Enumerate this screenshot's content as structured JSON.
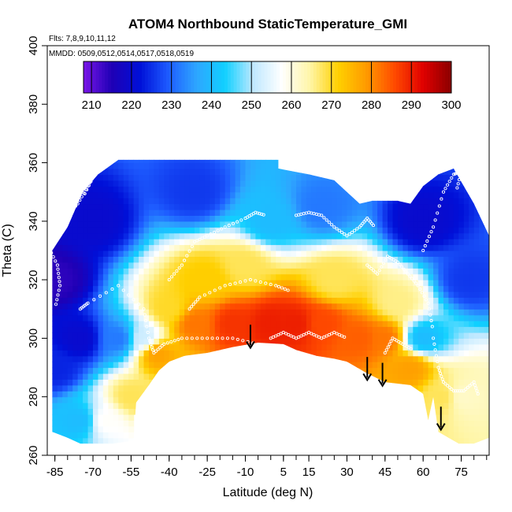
{
  "chart_data": {
    "type": "heatmap",
    "title": "ATOM4 Northbound StaticTemperature_GMI",
    "subtitle_flights": "Flts: 7,8,9,10,11,12",
    "subtitle_dates": "MMDD: 0509,0512,0514,0517,0518,0519",
    "xlabel": "Latitude (deg N)",
    "ylabel": "Theta (C)",
    "xlim": [
      -88,
      86
    ],
    "ylim": [
      260,
      400
    ],
    "x_ticks": [
      -85,
      -70,
      -55,
      -40,
      -25,
      -10,
      5,
      15,
      30,
      45,
      60,
      75
    ],
    "y_ticks": [
      260,
      280,
      300,
      320,
      340,
      360,
      380,
      400
    ],
    "colorbar": {
      "min": 208,
      "max": 300,
      "ticks": [
        210,
        220,
        230,
        240,
        250,
        260,
        270,
        280,
        290,
        300
      ],
      "colors": [
        "#7a16e8",
        "#1f00b5",
        "#0010d8",
        "#1e5cff",
        "#2ea6ff",
        "#10d0ff",
        "#bfe8ff",
        "#ffffff",
        "#fff6a8",
        "#ffd000",
        "#ff9a00",
        "#ff4a00",
        "#e00000",
        "#8a0000"
      ]
    },
    "surface_lower_theta": [
      [
        -86,
        268
      ],
      [
        -80,
        266
      ],
      [
        -75,
        264
      ],
      [
        -62,
        264
      ],
      [
        -54,
        265
      ],
      [
        -53,
        278
      ],
      [
        -48,
        284
      ],
      [
        -44,
        289
      ],
      [
        -40,
        292
      ],
      [
        -34,
        294
      ],
      [
        -25,
        295
      ],
      [
        -15,
        297
      ],
      [
        -5,
        298.5
      ],
      [
        5,
        298
      ],
      [
        10,
        296
      ],
      [
        18,
        294
      ],
      [
        25,
        293
      ],
      [
        30,
        292
      ],
      [
        38,
        288
      ],
      [
        45,
        285
      ],
      [
        55,
        284
      ],
      [
        60,
        281
      ],
      [
        62,
        272
      ],
      [
        64,
        280
      ],
      [
        66,
        268
      ],
      [
        70,
        266
      ],
      [
        74,
        264
      ],
      [
        80,
        264
      ],
      [
        86,
        266
      ]
    ],
    "surface_upper_theta": [
      [
        -86,
        330
      ],
      [
        -80,
        338
      ],
      [
        -74,
        350
      ],
      [
        -68,
        356
      ],
      [
        -60,
        361
      ],
      [
        -50,
        361
      ],
      [
        -40,
        361
      ],
      [
        -25,
        361
      ],
      [
        -10,
        361
      ],
      [
        0,
        361
      ],
      [
        3,
        361
      ],
      [
        3,
        358
      ],
      [
        15,
        356
      ],
      [
        25,
        354
      ],
      [
        30,
        350
      ],
      [
        35,
        346
      ],
      [
        40,
        347
      ],
      [
        45,
        347
      ],
      [
        50,
        347
      ],
      [
        55,
        346
      ],
      [
        60,
        352
      ],
      [
        66,
        356
      ],
      [
        72,
        358
      ],
      [
        80,
        346
      ],
      [
        86,
        335
      ]
    ],
    "temperature_samples": [
      {
        "lat": -85,
        "theta": 290,
        "temp": 224
      },
      {
        "lat": -85,
        "theta": 320,
        "temp": 214
      },
      {
        "lat": -75,
        "theta": 272,
        "temp": 240
      },
      {
        "lat": -75,
        "theta": 300,
        "temp": 220
      },
      {
        "lat": -65,
        "theta": 272,
        "temp": 258
      },
      {
        "lat": -60,
        "theta": 300,
        "temp": 232
      },
      {
        "lat": -55,
        "theta": 280,
        "temp": 268
      },
      {
        "lat": -50,
        "theta": 300,
        "temp": 252
      },
      {
        "lat": -45,
        "theta": 295,
        "temp": 278
      },
      {
        "lat": -40,
        "theta": 310,
        "temp": 270
      },
      {
        "lat": -30,
        "theta": 305,
        "temp": 282
      },
      {
        "lat": -25,
        "theta": 320,
        "temp": 272
      },
      {
        "lat": -15,
        "theta": 305,
        "temp": 288
      },
      {
        "lat": -10,
        "theta": 325,
        "temp": 268
      },
      {
        "lat": 0,
        "theta": 305,
        "temp": 290
      },
      {
        "lat": 0,
        "theta": 340,
        "temp": 240
      },
      {
        "lat": 10,
        "theta": 305,
        "temp": 290
      },
      {
        "lat": 20,
        "theta": 305,
        "temp": 286
      },
      {
        "lat": 25,
        "theta": 320,
        "temp": 268
      },
      {
        "lat": 35,
        "theta": 300,
        "temp": 284
      },
      {
        "lat": 45,
        "theta": 300,
        "temp": 282
      },
      {
        "lat": 50,
        "theta": 312,
        "temp": 266
      },
      {
        "lat": 55,
        "theta": 290,
        "temp": 278
      },
      {
        "lat": 60,
        "theta": 300,
        "temp": 240
      },
      {
        "lat": 68,
        "theta": 280,
        "temp": 268
      },
      {
        "lat": 75,
        "theta": 280,
        "temp": 262
      },
      {
        "lat": 78,
        "theta": 320,
        "temp": 226
      },
      {
        "lat": -70,
        "theta": 340,
        "temp": 220
      },
      {
        "lat": -30,
        "theta": 350,
        "temp": 226
      },
      {
        "lat": 20,
        "theta": 345,
        "temp": 232
      },
      {
        "lat": 60,
        "theta": 340,
        "temp": 220
      }
    ],
    "arrow_markers": [
      {
        "lat": -8,
        "theta_from": 303,
        "theta_to": 297
      },
      {
        "lat": 38,
        "theta_from": 292,
        "theta_to": 286
      },
      {
        "lat": 44,
        "theta_from": 290,
        "theta_to": 284
      },
      {
        "lat": 67,
        "theta_from": 275,
        "theta_to": 269
      }
    ],
    "flight_tracks": [
      {
        "points": [
          [
            -80,
            342
          ],
          [
            -76,
            346
          ],
          [
            -72,
            352
          ],
          [
            -68,
            358
          ],
          [
            -66,
            362
          ],
          [
            -70,
            355
          ],
          [
            -74,
            348
          ]
        ]
      },
      {
        "points": [
          [
            -75,
            310
          ],
          [
            -72,
            312
          ],
          [
            -60,
            318
          ],
          [
            -50,
            310
          ],
          [
            -48,
            300
          ],
          [
            -46,
            295
          ],
          [
            -42,
            298
          ],
          [
            -35,
            300
          ],
          [
            -25,
            300
          ],
          [
            -15,
            300
          ],
          [
            -5,
            298
          ]
        ]
      },
      {
        "points": [
          [
            -40,
            320
          ],
          [
            -35,
            325
          ],
          [
            -30,
            333
          ],
          [
            -25,
            335
          ],
          [
            -18,
            338
          ],
          [
            -10,
            341
          ],
          [
            -6,
            343
          ],
          [
            -2,
            342
          ]
        ]
      },
      {
        "points": [
          [
            -32,
            310
          ],
          [
            -28,
            314
          ],
          [
            -18,
            318
          ],
          [
            -8,
            320
          ],
          [
            2,
            318
          ],
          [
            8,
            316
          ]
        ]
      },
      {
        "points": [
          [
            10,
            342
          ],
          [
            15,
            343
          ],
          [
            20,
            342
          ],
          [
            25,
            338
          ],
          [
            30,
            335
          ],
          [
            35,
            338
          ],
          [
            38,
            341
          ],
          [
            41,
            338
          ]
        ]
      },
      {
        "points": [
          [
            38,
            325
          ],
          [
            42,
            322
          ],
          [
            46,
            328
          ],
          [
            50,
            326
          ],
          [
            54,
            322
          ],
          [
            58,
            318
          ],
          [
            62,
            312
          ],
          [
            64,
            302
          ]
        ]
      },
      {
        "points": [
          [
            60,
            330
          ],
          [
            64,
            338
          ],
          [
            68,
            350
          ],
          [
            72,
            356
          ],
          [
            75,
            357
          ],
          [
            73,
            350
          ]
        ]
      },
      {
        "points": [
          [
            64,
            300
          ],
          [
            66,
            290
          ],
          [
            68,
            285
          ],
          [
            72,
            282
          ],
          [
            76,
            282
          ],
          [
            80,
            285
          ],
          [
            82,
            280
          ]
        ]
      },
      {
        "points": [
          [
            -88,
            332
          ],
          [
            -84,
            325
          ],
          [
            -83,
            318
          ],
          [
            -85,
            310
          ]
        ]
      },
      {
        "points": [
          [
            0,
            300
          ],
          [
            5,
            302
          ],
          [
            10,
            300
          ],
          [
            15,
            302
          ],
          [
            20,
            300
          ],
          [
            25,
            302
          ],
          [
            30,
            300
          ]
        ]
      },
      {
        "points": [
          [
            45,
            295
          ],
          [
            48,
            300
          ],
          [
            52,
            298
          ],
          [
            56,
            296
          ]
        ]
      }
    ]
  }
}
